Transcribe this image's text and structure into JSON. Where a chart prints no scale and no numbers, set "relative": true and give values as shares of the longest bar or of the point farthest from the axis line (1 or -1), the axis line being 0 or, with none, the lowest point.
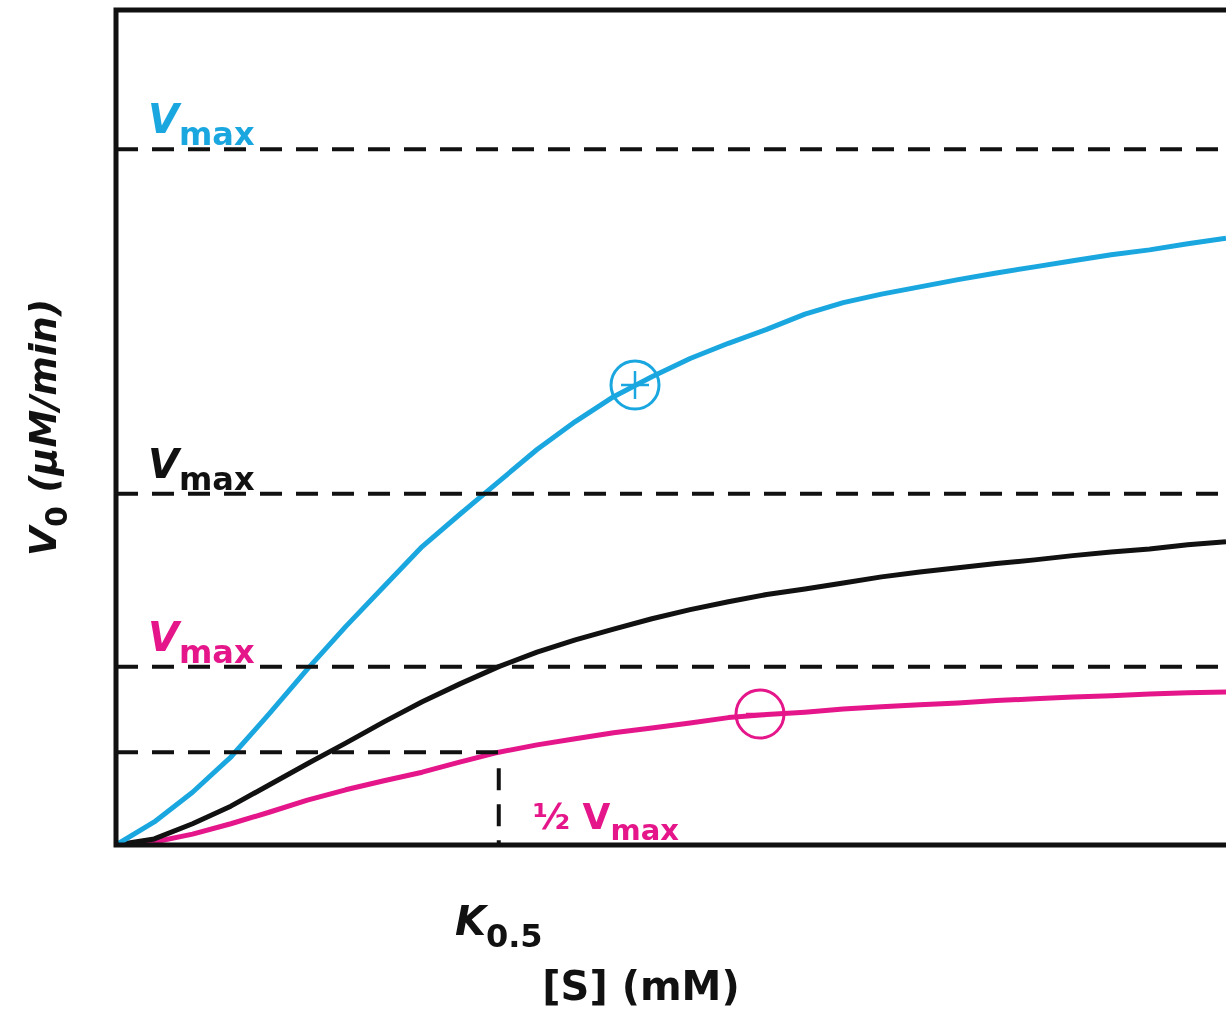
{
  "chart_data": {
    "type": "line",
    "relative": true,
    "xlabel": "[S] (mM)",
    "ylabel": "V$_{0}$ (μM/min)",
    "legend": false,
    "grid": false,
    "categories": [
      null,
      null,
      null,
      null,
      null,
      null,
      null,
      null,
      null,
      null,
      null,
      null,
      null,
      null,
      null,
      null,
      null,
      null,
      null,
      null,
      null,
      null,
      null,
      null,
      null,
      null,
      null,
      null,
      null,
      null
    ],
    "series": [
      {
        "color": "#1aa7e0",
        "values": [
          0,
          0.038,
          0.087,
          0.145,
          0.216,
          0.29,
          0.36,
          0.426,
          0.492,
          0.546,
          0.599,
          0.652,
          0.698,
          0.739,
          0.772,
          0.802,
          0.827,
          0.85,
          0.875,
          0.894,
          0.908,
          0.92,
          0.932,
          0.943,
          0.953,
          0.963,
          0.973,
          0.981,
          0.991,
          1
        ]
      },
      {
        "color": "#111111",
        "values": [
          0,
          0.01,
          0.035,
          0.064,
          0.099,
          0.134,
          0.168,
          0.203,
          0.236,
          0.266,
          0.294,
          0.318,
          0.338,
          0.356,
          0.373,
          0.388,
          0.401,
          0.413,
          0.422,
          0.432,
          0.442,
          0.45,
          0.457,
          0.464,
          0.47,
          0.477,
          0.483,
          0.488,
          0.495,
          0.5
        ]
      },
      {
        "color": "#e5168a",
        "values": [
          0,
          0.005,
          0.018,
          0.035,
          0.054,
          0.074,
          0.091,
          0.106,
          0.12,
          0.137,
          0.153,
          0.165,
          0.175,
          0.185,
          0.193,
          0.201,
          0.21,
          0.215,
          0.219,
          0.224,
          0.228,
          0.231,
          0.234,
          0.238,
          0.241,
          0.244,
          0.246,
          0.249,
          0.251,
          0.252
        ]
      }
    ],
    "ref_lines": [
      {
        "axis": "y",
        "value": 1.147,
        "label": "V$_{max}$",
        "line_style": "dashed"
      },
      {
        "axis": "y",
        "value": 0.579,
        "label": "V$_{max}$",
        "line_style": "dashed"
      },
      {
        "axis": "y",
        "value": 0.294,
        "label": "V$_{max}$",
        "line_style": "dashed"
      },
      {
        "axis": "y",
        "value": 0.153,
        "line_style": "dashed"
      }
    ],
    "annotations": [
      "K$_{0.5}$",
      "½ V$_{max}$"
    ]
  }
}
